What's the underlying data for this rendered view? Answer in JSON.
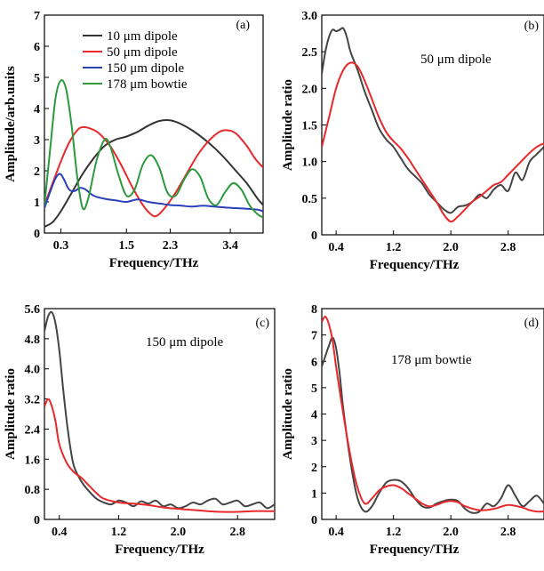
{
  "chart_data": [
    {
      "type": "line",
      "panel_label": "(a)",
      "xlabel": "Frequency/THz",
      "ylabel": "Amplitude/arb.units",
      "xlim": [
        0,
        4.0
      ],
      "ylim": [
        0,
        7
      ],
      "xticks": [
        0.3,
        1.5,
        2.3,
        3.4
      ],
      "xtick_labels": [
        "0.3",
        "1.5",
        "2.3",
        "3.4"
      ],
      "yticks": [
        0,
        1,
        2,
        3,
        4,
        5,
        6,
        7
      ],
      "ytick_labels": [
        "0",
        "1",
        "2",
        "3",
        "4",
        "5",
        "6",
        "7"
      ],
      "legend_position": "top-center",
      "series": [
        {
          "name": "10 μm dipole",
          "color": "#333333",
          "x": [
            0,
            0.15,
            0.3,
            0.5,
            0.7,
            0.9,
            1.1,
            1.3,
            1.5,
            1.7,
            1.9,
            2.1,
            2.3,
            2.5,
            2.7,
            2.9,
            3.1,
            3.3,
            3.5,
            3.7,
            3.9,
            4.0
          ],
          "y": [
            0.2,
            0.35,
            0.7,
            1.3,
            1.9,
            2.4,
            2.8,
            3.0,
            3.1,
            3.25,
            3.45,
            3.6,
            3.62,
            3.5,
            3.3,
            3.05,
            2.75,
            2.4,
            2.0,
            1.6,
            1.1,
            0.9
          ]
        },
        {
          "name": "50 μm dipole",
          "color": "#e8282b",
          "x": [
            0,
            0.15,
            0.3,
            0.45,
            0.6,
            0.7,
            0.85,
            1.0,
            1.2,
            1.4,
            1.6,
            1.8,
            1.95,
            2.05,
            2.2,
            2.4,
            2.6,
            2.8,
            3.0,
            3.2,
            3.35,
            3.5,
            3.7,
            3.85,
            4.0
          ],
          "y": [
            0.9,
            1.6,
            2.3,
            2.9,
            3.3,
            3.4,
            3.35,
            3.2,
            2.8,
            2.2,
            1.5,
            0.9,
            0.6,
            0.55,
            0.8,
            1.3,
            1.9,
            2.5,
            2.95,
            3.25,
            3.3,
            3.2,
            2.8,
            2.4,
            2.1
          ]
        },
        {
          "name": "150 μm dipole",
          "color": "#2a3fb8",
          "x": [
            0,
            0.1,
            0.2,
            0.28,
            0.35,
            0.45,
            0.55,
            0.65,
            0.75,
            0.9,
            1.1,
            1.3,
            1.5,
            1.7,
            1.9,
            2.1,
            2.3,
            2.5,
            2.7,
            2.9,
            3.1,
            3.3,
            3.5,
            3.7,
            3.9,
            4.0
          ],
          "y": [
            0.8,
            1.3,
            1.75,
            1.9,
            1.75,
            1.4,
            1.35,
            1.45,
            1.4,
            1.2,
            1.1,
            1.05,
            1.0,
            1.08,
            1.0,
            0.95,
            0.9,
            0.88,
            0.85,
            0.88,
            0.85,
            0.82,
            0.8,
            0.78,
            0.75,
            0.7
          ]
        },
        {
          "name": "178 μm bowtie",
          "color": "#2c9a3c",
          "x": [
            0,
            0.1,
            0.2,
            0.3,
            0.4,
            0.5,
            0.6,
            0.7,
            0.8,
            0.95,
            1.1,
            1.2,
            1.35,
            1.5,
            1.65,
            1.8,
            1.95,
            2.1,
            2.25,
            2.4,
            2.55,
            2.7,
            2.85,
            3.0,
            3.15,
            3.3,
            3.45,
            3.6,
            3.75,
            3.9,
            4.0
          ],
          "y": [
            0.9,
            2.6,
            4.3,
            4.9,
            4.6,
            3.4,
            1.8,
            0.8,
            1.1,
            2.3,
            3.0,
            2.8,
            1.9,
            1.2,
            1.4,
            2.2,
            2.5,
            2.1,
            1.3,
            1.2,
            1.7,
            2.05,
            1.8,
            1.1,
            0.9,
            1.3,
            1.6,
            1.4,
            0.9,
            0.6,
            0.5
          ]
        }
      ]
    },
    {
      "type": "line",
      "panel_label": "(b)",
      "annotation": "50 μm dipole",
      "xlabel": "Frequency/THz",
      "ylabel": "Amplitude ratio",
      "xlim": [
        0.2,
        3.3
      ],
      "ylim": [
        0,
        3.0
      ],
      "xticks": [
        0.4,
        1.2,
        2.0,
        2.8
      ],
      "xtick_labels": [
        "0.4",
        "1.2",
        "2.0",
        "2.8"
      ],
      "yticks": [
        0,
        0.5,
        1.0,
        1.5,
        2.0,
        2.5,
        3.0
      ],
      "ytick_labels": [
        "0",
        "0.5",
        "1.0",
        "1.5",
        "2.0",
        "2.5",
        "3.0"
      ],
      "series": [
        {
          "color": "#444444",
          "x": [
            0.2,
            0.25,
            0.3,
            0.35,
            0.4,
            0.45,
            0.5,
            0.55,
            0.6,
            0.7,
            0.8,
            0.9,
            1.0,
            1.1,
            1.2,
            1.3,
            1.4,
            1.5,
            1.6,
            1.7,
            1.8,
            1.9,
            2.0,
            2.1,
            2.2,
            2.3,
            2.4,
            2.5,
            2.6,
            2.7,
            2.8,
            2.9,
            3.0,
            3.1,
            3.2,
            3.3
          ],
          "y": [
            2.2,
            2.5,
            2.7,
            2.8,
            2.78,
            2.8,
            2.82,
            2.7,
            2.5,
            2.25,
            1.95,
            1.7,
            1.45,
            1.3,
            1.2,
            1.05,
            0.9,
            0.8,
            0.7,
            0.55,
            0.45,
            0.35,
            0.3,
            0.38,
            0.4,
            0.45,
            0.55,
            0.5,
            0.62,
            0.68,
            0.6,
            0.85,
            0.75,
            1.0,
            1.1,
            1.2
          ]
        },
        {
          "color": "#e8282b",
          "x": [
            0.2,
            0.3,
            0.4,
            0.5,
            0.6,
            0.7,
            0.8,
            0.9,
            1.0,
            1.1,
            1.2,
            1.3,
            1.4,
            1.5,
            1.6,
            1.7,
            1.8,
            1.9,
            2.0,
            2.1,
            2.2,
            2.3,
            2.4,
            2.5,
            2.6,
            2.7,
            2.8,
            2.9,
            3.0,
            3.1,
            3.2,
            3.3
          ],
          "y": [
            1.2,
            1.6,
            2.0,
            2.25,
            2.35,
            2.3,
            2.1,
            1.85,
            1.6,
            1.4,
            1.28,
            1.18,
            1.05,
            0.9,
            0.75,
            0.6,
            0.45,
            0.28,
            0.18,
            0.25,
            0.35,
            0.45,
            0.52,
            0.6,
            0.68,
            0.72,
            0.82,
            0.92,
            1.02,
            1.12,
            1.2,
            1.25
          ]
        }
      ]
    },
    {
      "type": "line",
      "panel_label": "(c)",
      "annotation": "150 μm dipole",
      "xlabel": "Frequency/THz",
      "ylabel": "Amplitude ratio",
      "xlim": [
        0.2,
        3.3
      ],
      "ylim": [
        0,
        5.6
      ],
      "xticks": [
        0.4,
        1.2,
        2.0,
        2.8
      ],
      "xtick_labels": [
        "0.4",
        "1.2",
        "2.0",
        "2.8"
      ],
      "yticks": [
        0,
        0.8,
        1.6,
        2.4,
        3.2,
        4.0,
        4.8,
        5.6
      ],
      "ytick_labels": [
        "0",
        "0.8",
        "1.6",
        "2.4",
        "3.2",
        "4.0",
        "4.8",
        "5.6"
      ],
      "series": [
        {
          "color": "#444444",
          "x": [
            0.2,
            0.25,
            0.3,
            0.35,
            0.4,
            0.45,
            0.5,
            0.55,
            0.6,
            0.7,
            0.8,
            0.9,
            1.0,
            1.1,
            1.2,
            1.3,
            1.4,
            1.5,
            1.6,
            1.7,
            1.8,
            1.9,
            2.0,
            2.1,
            2.2,
            2.3,
            2.4,
            2.5,
            2.6,
            2.7,
            2.8,
            2.9,
            3.0,
            3.1,
            3.2,
            3.3
          ],
          "y": [
            5.0,
            5.4,
            5.5,
            5.2,
            4.5,
            3.5,
            2.6,
            1.9,
            1.4,
            1.0,
            0.75,
            0.55,
            0.45,
            0.4,
            0.5,
            0.45,
            0.35,
            0.48,
            0.42,
            0.5,
            0.35,
            0.4,
            0.3,
            0.35,
            0.45,
            0.4,
            0.5,
            0.55,
            0.4,
            0.45,
            0.5,
            0.35,
            0.4,
            0.45,
            0.3,
            0.4
          ]
        },
        {
          "color": "#e8282b",
          "x": [
            0.2,
            0.25,
            0.3,
            0.35,
            0.4,
            0.5,
            0.6,
            0.7,
            0.8,
            0.9,
            1.0,
            1.2,
            1.4,
            1.6,
            1.8,
            2.0,
            2.2,
            2.4,
            2.6,
            2.8,
            3.0,
            3.2,
            3.3
          ],
          "y": [
            3.0,
            3.2,
            3.0,
            2.6,
            2.0,
            1.5,
            1.25,
            1.1,
            0.9,
            0.7,
            0.55,
            0.45,
            0.42,
            0.38,
            0.32,
            0.28,
            0.25,
            0.22,
            0.2,
            0.2,
            0.22,
            0.22,
            0.22
          ]
        }
      ]
    },
    {
      "type": "line",
      "panel_label": "(d)",
      "annotation": "178 μm bowtie",
      "xlabel": "Frequency/THz",
      "ylabel": "Amplitude ratio",
      "xlim": [
        0.2,
        3.3
      ],
      "ylim": [
        0,
        8
      ],
      "xticks": [
        0.4,
        1.2,
        2.0,
        2.8
      ],
      "xtick_labels": [
        "0.4",
        "1.2",
        "2.0",
        "2.8"
      ],
      "yticks": [
        0,
        1,
        2,
        3,
        4,
        5,
        6,
        7,
        8
      ],
      "ytick_labels": [
        "0",
        "1",
        "2",
        "3",
        "4",
        "5",
        "6",
        "7",
        "8"
      ],
      "series": [
        {
          "color": "#444444",
          "x": [
            0.2,
            0.25,
            0.3,
            0.35,
            0.4,
            0.45,
            0.5,
            0.6,
            0.7,
            0.8,
            0.9,
            1.0,
            1.1,
            1.2,
            1.3,
            1.4,
            1.5,
            1.6,
            1.7,
            1.8,
            1.9,
            2.0,
            2.1,
            2.2,
            2.3,
            2.4,
            2.5,
            2.6,
            2.7,
            2.8,
            2.9,
            3.0,
            3.1,
            3.2,
            3.3
          ],
          "y": [
            5.8,
            6.2,
            6.6,
            6.9,
            6.5,
            5.5,
            4.2,
            2.2,
            0.8,
            0.3,
            0.5,
            1.0,
            1.4,
            1.5,
            1.45,
            1.2,
            0.8,
            0.5,
            0.45,
            0.6,
            0.7,
            0.75,
            0.7,
            0.4,
            0.25,
            0.3,
            0.6,
            0.5,
            0.8,
            1.3,
            0.9,
            0.5,
            0.7,
            0.9,
            0.6
          ]
        },
        {
          "color": "#e8282b",
          "x": [
            0.2,
            0.25,
            0.3,
            0.35,
            0.4,
            0.5,
            0.6,
            0.7,
            0.8,
            0.9,
            1.0,
            1.1,
            1.2,
            1.3,
            1.4,
            1.5,
            1.6,
            1.7,
            1.8,
            1.9,
            2.0,
            2.1,
            2.2,
            2.4,
            2.6,
            2.8,
            3.0,
            3.1,
            3.2,
            3.3
          ],
          "y": [
            7.5,
            7.7,
            7.4,
            6.8,
            5.8,
            4.0,
            2.4,
            1.2,
            0.6,
            0.8,
            1.1,
            1.25,
            1.3,
            1.2,
            1.0,
            0.8,
            0.6,
            0.5,
            0.55,
            0.65,
            0.7,
            0.65,
            0.5,
            0.35,
            0.4,
            0.55,
            0.45,
            0.35,
            0.3,
            0.3
          ]
        }
      ]
    }
  ]
}
